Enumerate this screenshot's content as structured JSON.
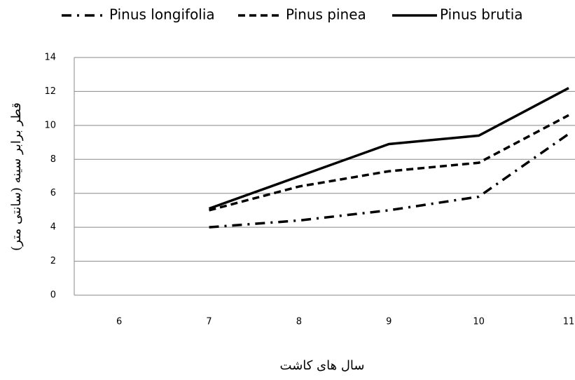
{
  "chart_data": {
    "type": "line",
    "x": [
      6,
      7,
      8,
      9,
      10,
      11
    ],
    "xlim": [
      5.5,
      11
    ],
    "xticks": [
      6,
      7,
      8,
      9,
      10,
      11
    ],
    "ylim": [
      0,
      14
    ],
    "yticks": [
      0,
      2,
      4,
      6,
      8,
      10,
      12,
      14
    ],
    "grid": true,
    "legend": "top",
    "xlabel": "سال های کاشت",
    "ylabel": "قطر برابر سینه (سانتی متر)",
    "series": [
      {
        "name": "Pinus longifolia",
        "color": "#000000",
        "dash": "dash-dot",
        "values": [
          null,
          4.0,
          4.4,
          5.0,
          5.8,
          9.5
        ]
      },
      {
        "name": "Pinus pinea",
        "color": "#000000",
        "dash": "dash",
        "values": [
          null,
          5.0,
          6.4,
          7.3,
          7.8,
          10.6
        ]
      },
      {
        "name": "Pinus brutia",
        "color": "#000000",
        "dash": "solid",
        "values": [
          null,
          5.1,
          7.0,
          8.9,
          9.4,
          12.2
        ]
      }
    ]
  }
}
